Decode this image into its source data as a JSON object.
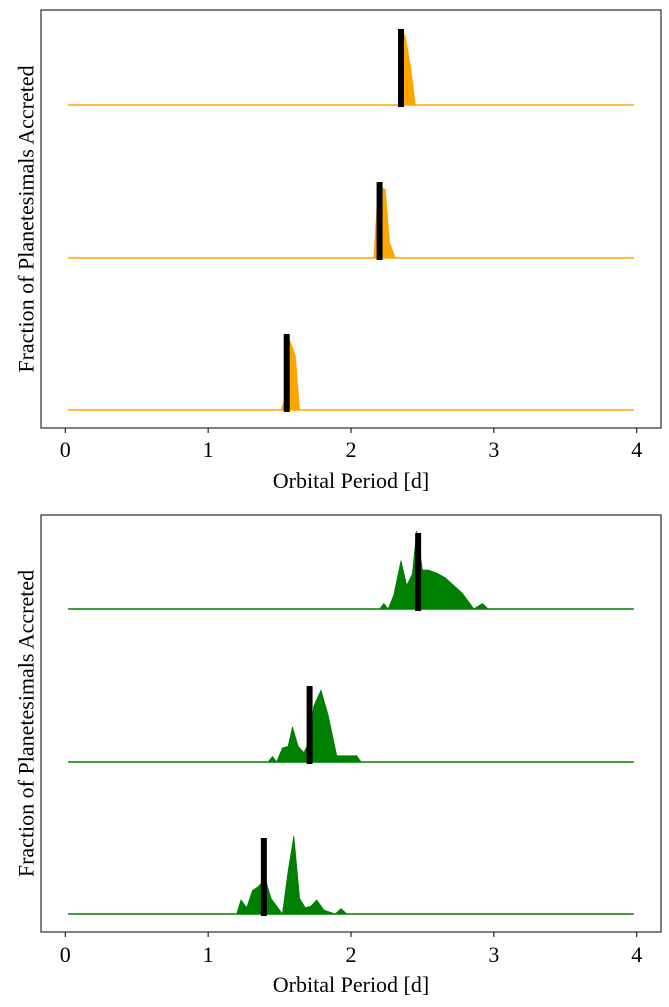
{
  "chart_data": [
    {
      "type": "area",
      "panel": "top",
      "xlabel": "Orbital Period [d]",
      "ylabel": "Fraction of Planetesimals Accreted",
      "xlim": [
        -0.17,
        4.17
      ],
      "xticks": [
        "0",
        "1",
        "2",
        "3",
        "4"
      ],
      "yticks_visible": false,
      "grid": false,
      "legend": "none",
      "color": "#ffa500",
      "marker_color": "#000000",
      "baseline_range": [
        0.02,
        3.98
      ],
      "series": [
        {
          "marker_period": 2.35,
          "x": [
            2.33,
            2.35,
            2.38,
            2.42,
            2.45
          ],
          "y": [
            0.0,
            0.98,
            0.88,
            0.45,
            0.0
          ]
        },
        {
          "marker_period": 2.2,
          "x": [
            2.16,
            2.19,
            2.24,
            2.27,
            2.31
          ],
          "y": [
            0.0,
            0.92,
            0.88,
            0.2,
            0.0
          ]
        },
        {
          "marker_period": 1.55,
          "x": [
            1.51,
            1.54,
            1.57,
            1.61,
            1.64
          ],
          "y": [
            0.0,
            0.15,
            0.9,
            0.7,
            0.0
          ]
        }
      ]
    },
    {
      "type": "area",
      "panel": "bottom",
      "xlabel": "Orbital Period [d]",
      "ylabel": "Fraction of Planetesimals Accreted",
      "xlim": [
        -0.17,
        4.17
      ],
      "xticks": [
        "0",
        "1",
        "2",
        "3",
        "4"
      ],
      "yticks_visible": false,
      "grid": false,
      "legend": "none",
      "color": "#008000",
      "marker_color": "#000000",
      "baseline_range": [
        0.02,
        3.98
      ],
      "series": [
        {
          "marker_period": 2.47,
          "x": [
            2.2,
            2.23,
            2.26,
            2.3,
            2.35,
            2.39,
            2.43,
            2.46,
            2.5,
            2.54,
            2.6,
            2.66,
            2.72,
            2.78,
            2.86,
            2.92,
            2.96
          ],
          "y": [
            0.0,
            0.07,
            0.0,
            0.18,
            0.62,
            0.3,
            0.45,
            1.0,
            0.5,
            0.5,
            0.46,
            0.4,
            0.3,
            0.2,
            0.0,
            0.07,
            0.0
          ]
        },
        {
          "marker_period": 1.71,
          "x": [
            1.42,
            1.45,
            1.48,
            1.52,
            1.56,
            1.59,
            1.63,
            1.67,
            1.71,
            1.74,
            1.79,
            1.84,
            1.9,
            1.98,
            2.04,
            2.07
          ],
          "y": [
            0.0,
            0.07,
            0.0,
            0.18,
            0.2,
            0.45,
            0.2,
            0.12,
            0.28,
            0.72,
            0.92,
            0.6,
            0.08,
            0.08,
            0.08,
            0.0
          ]
        },
        {
          "marker_period": 1.39,
          "x": [
            1.2,
            1.23,
            1.27,
            1.31,
            1.35,
            1.4,
            1.44,
            1.48,
            1.52,
            1.56,
            1.6,
            1.64,
            1.68,
            1.72,
            1.76,
            1.81,
            1.89,
            1.93,
            1.97
          ],
          "y": [
            0.0,
            0.18,
            0.08,
            0.3,
            0.35,
            0.45,
            0.2,
            0.1,
            0.0,
            0.55,
            1.0,
            0.2,
            0.08,
            0.1,
            0.18,
            0.05,
            0.0,
            0.07,
            0.0
          ]
        }
      ]
    }
  ]
}
